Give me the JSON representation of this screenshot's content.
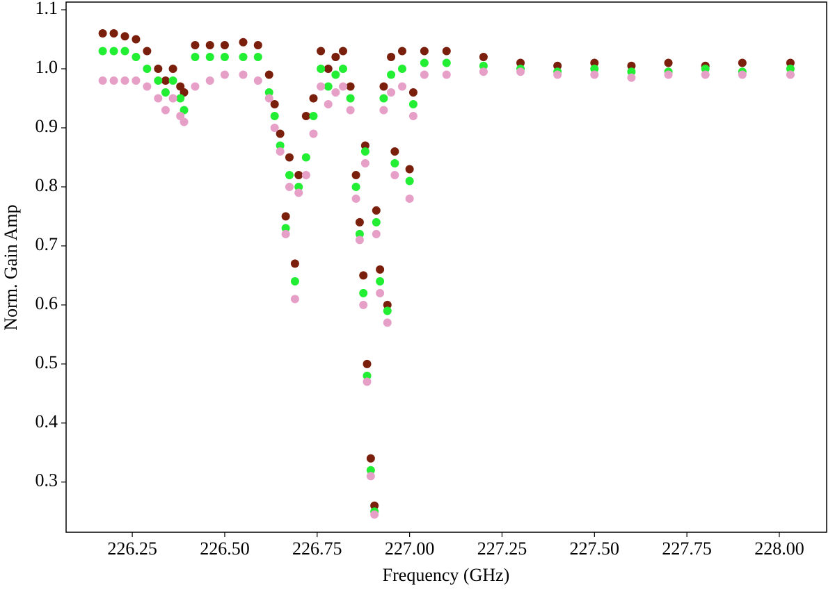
{
  "chart_data": {
    "type": "scatter",
    "x_label": "Frequency (GHz)",
    "y_label": "Norm. Gain Amp",
    "x": [
      226.17,
      226.2,
      226.23,
      226.26,
      226.29,
      226.32,
      226.34,
      226.36,
      226.38,
      226.39,
      226.42,
      226.46,
      226.5,
      226.55,
      226.59,
      226.62,
      226.635,
      226.65,
      226.665,
      226.675,
      226.69,
      226.7,
      226.72,
      226.74,
      226.76,
      226.78,
      226.8,
      226.82,
      226.84,
      226.855,
      226.865,
      226.875,
      226.88,
      226.885,
      226.895,
      226.905,
      226.91,
      226.92,
      226.93,
      226.94,
      226.95,
      226.96,
      226.98,
      227.0,
      227.01,
      227.04,
      227.1,
      227.2,
      227.3,
      227.4,
      227.5,
      227.6,
      227.7,
      227.8,
      227.9,
      228.03
    ],
    "series": [
      {
        "color": "#7a1f0c",
        "values": [
          1.06,
          1.06,
          1.055,
          1.05,
          1.03,
          1.0,
          0.98,
          1.0,
          0.97,
          0.96,
          1.04,
          1.04,
          1.04,
          1.045,
          1.04,
          0.99,
          0.94,
          0.89,
          0.75,
          0.85,
          0.67,
          0.82,
          0.92,
          0.95,
          1.03,
          1.0,
          1.02,
          1.03,
          0.97,
          0.82,
          0.74,
          0.65,
          0.87,
          0.5,
          0.34,
          0.26,
          0.76,
          0.66,
          0.97,
          0.6,
          1.02,
          0.86,
          1.03,
          0.83,
          0.96,
          1.03,
          1.03,
          1.02,
          1.01,
          1.005,
          1.01,
          1.005,
          1.01,
          1.005,
          1.01,
          1.01
        ]
      },
      {
        "color": "#22ee33",
        "values": [
          1.03,
          1.03,
          1.03,
          1.02,
          1.0,
          0.98,
          0.96,
          0.98,
          0.95,
          0.93,
          1.02,
          1.02,
          1.02,
          1.02,
          1.02,
          0.96,
          0.92,
          0.87,
          0.73,
          0.82,
          0.64,
          0.8,
          0.85,
          0.92,
          1.0,
          0.97,
          0.99,
          1.0,
          0.95,
          0.8,
          0.72,
          0.62,
          0.86,
          0.48,
          0.32,
          0.25,
          0.74,
          0.64,
          0.95,
          0.59,
          0.99,
          0.84,
          1.0,
          0.81,
          0.94,
          1.01,
          1.01,
          1.005,
          1.0,
          0.995,
          1.0,
          0.995,
          0.995,
          1.0,
          0.995,
          1.0
        ]
      },
      {
        "color": "#e6a0c8",
        "values": [
          0.98,
          0.98,
          0.98,
          0.98,
          0.97,
          0.95,
          0.93,
          0.95,
          0.92,
          0.91,
          0.97,
          0.98,
          0.99,
          0.99,
          0.98,
          0.95,
          0.9,
          0.86,
          0.72,
          0.8,
          0.61,
          0.79,
          0.82,
          0.89,
          0.97,
          0.94,
          0.96,
          0.97,
          0.93,
          0.78,
          0.71,
          0.6,
          0.84,
          0.47,
          0.31,
          0.245,
          0.72,
          0.62,
          0.93,
          0.57,
          0.96,
          0.82,
          0.97,
          0.78,
          0.92,
          0.99,
          0.99,
          0.995,
          0.995,
          0.99,
          0.99,
          0.985,
          0.99,
          0.99,
          0.99,
          0.99
        ]
      }
    ],
    "xlim": [
      226.071,
      228.128
    ],
    "ylim": [
      0.215,
      1.113
    ],
    "xticks": [
      226.25,
      {
        "value": 226.5,
        "label": "226.50"
      },
      226.75,
      {
        "value": 227.0,
        "label": "227.00"
      },
      227.25,
      {
        "value": 227.5,
        "label": "227.50"
      },
      227.75,
      {
        "value": 228.0,
        "label": "228.00"
      }
    ],
    "yticks": [
      0.3,
      0.4,
      0.5,
      0.6,
      0.7,
      0.8,
      0.9,
      {
        "value": 1.0,
        "label": "1.0"
      },
      1.1
    ]
  }
}
